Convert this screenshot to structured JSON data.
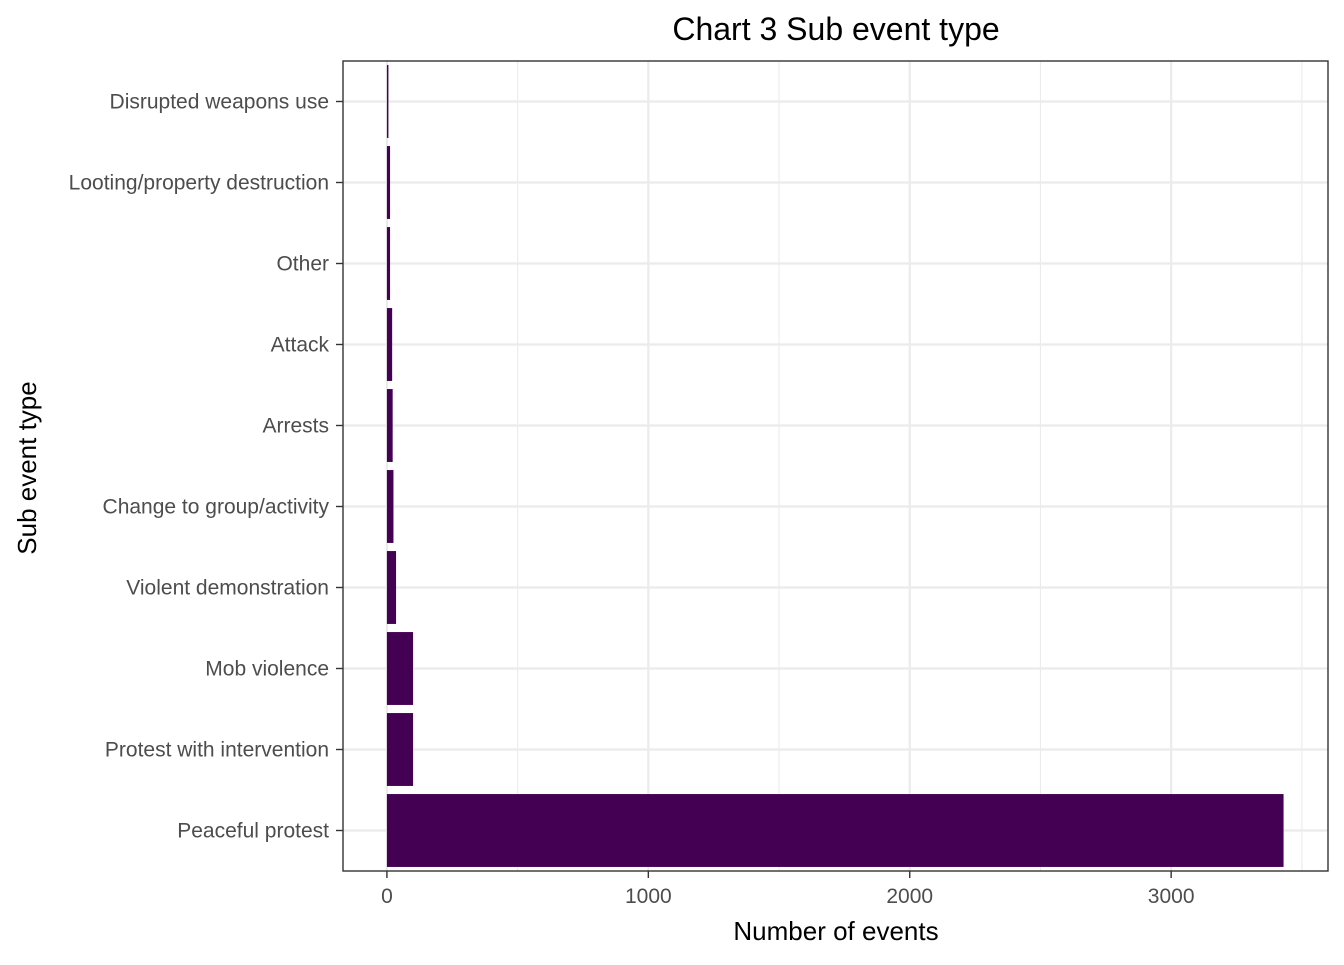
{
  "chart_data": {
    "type": "bar",
    "orientation": "horizontal",
    "title": "Chart 3 Sub event type",
    "xlabel": "Number of events",
    "ylabel": "Sub event type",
    "categories": [
      "Peaceful protest",
      "Protest with intervention",
      "Mob violence",
      "Violent demonstration",
      "Change to group/activity",
      "Arrests",
      "Attack",
      "Other",
      "Looting/property destruction",
      "Disrupted weapons use"
    ],
    "values": [
      3430,
      100,
      100,
      35,
      25,
      22,
      20,
      12,
      12,
      5
    ],
    "xlim": [
      -168,
      3600
    ],
    "xticks": [
      0,
      1000,
      2000,
      3000
    ],
    "xtick_labels": [
      "0",
      "1000",
      "2000",
      "3000"
    ],
    "grid": true,
    "legend": "none",
    "bar_color": "#440154",
    "grid_color": "#ebebeb",
    "panel_border_color": "#333333"
  }
}
